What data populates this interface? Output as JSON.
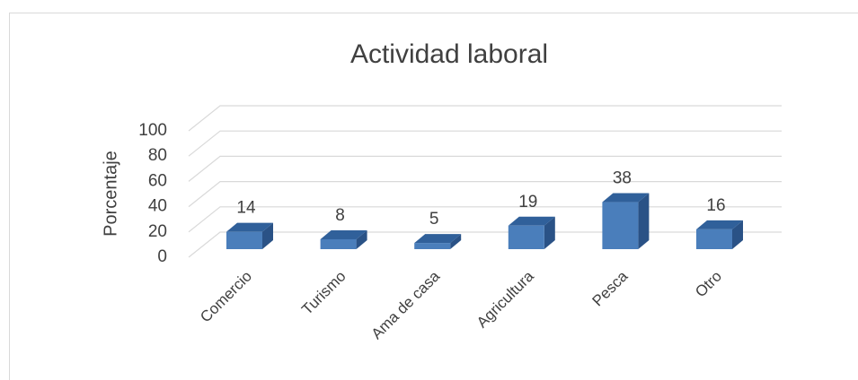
{
  "chart_data": {
    "type": "bar3d",
    "title": "Actividad laboral",
    "y_label": "Porcentaje",
    "categories": [
      "Comercio",
      "Turismo",
      "Ama de casa",
      "Agricultura",
      "Pesca",
      "Otro"
    ],
    "values": [
      14,
      8,
      5,
      19,
      38,
      16
    ],
    "color": "#4a7ebb",
    "ylim": [
      0,
      100
    ],
    "yticks": [
      0,
      20,
      40,
      60,
      80,
      100
    ],
    "grid": true
  }
}
